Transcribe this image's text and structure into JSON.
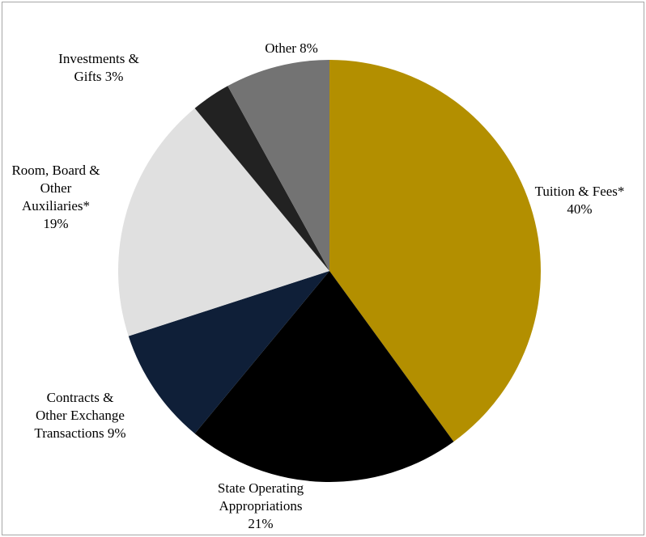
{
  "chart_data": {
    "type": "pie",
    "title": "",
    "start_angle_deg": 0,
    "direction": "clockwise",
    "legend": "none",
    "slices": [
      {
        "name": "Tuition & Fees*",
        "value": 40,
        "color": "#b38f00",
        "label_lines": [
          "Tuition & Fees*",
          "40%"
        ]
      },
      {
        "name": "State Operating Appropriations",
        "value": 21,
        "color": "#000000",
        "label_lines": [
          "State Operating",
          "Appropriations",
          "21%"
        ]
      },
      {
        "name": "Contracts & Other Exchange Transactions",
        "value": 9,
        "color": "#0f1f38",
        "label_lines": [
          "Contracts &",
          "Other Exchange",
          "Transactions 9%"
        ]
      },
      {
        "name": "Room, Board & Other Auxiliaries*",
        "value": 19,
        "color": "#e0e0e0",
        "label_lines": [
          "Room, Board &",
          "Other",
          "Auxiliaries*",
          "19%"
        ]
      },
      {
        "name": "Investments & Gifts",
        "value": 3,
        "color": "#222222",
        "label_lines": [
          "Investments &",
          "Gifts 3%"
        ]
      },
      {
        "name": "Other",
        "value": 8,
        "color": "#737373",
        "label_lines": [
          "Other 8%"
        ]
      }
    ]
  }
}
